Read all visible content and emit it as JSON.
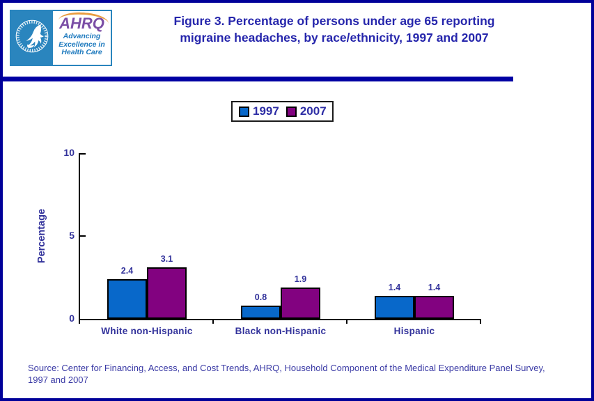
{
  "header": {
    "logo": {
      "seal": "hhs-eagle-seal",
      "wordmark": "AHRQ",
      "tagline_line1": "Advancing",
      "tagline_line2": "Excellence in",
      "tagline_line3": "Health Care"
    },
    "title_line1": "Figure 3. Percentage of persons under age 65 reporting",
    "title_line2": "migraine headaches, by race/ethnicity, 1997 and 2007"
  },
  "chart_data": {
    "type": "bar",
    "title": "Figure 3. Percentage of persons under age 65 reporting migraine headaches, by race/ethnicity, 1997 and 2007",
    "categories": [
      "White non-Hispanic",
      "Black non-Hispanic",
      "Hispanic"
    ],
    "series": [
      {
        "name": "1997",
        "color": "#0868ca",
        "values": [
          2.4,
          0.8,
          1.4
        ]
      },
      {
        "name": "2007",
        "color": "#820280",
        "values": [
          3.1,
          1.9,
          1.4
        ]
      }
    ],
    "xlabel": "",
    "ylabel": "Percentage",
    "ylim": [
      0,
      10
    ],
    "yticks": [
      0,
      5,
      10
    ],
    "grid": false,
    "legend_position": "top-center",
    "data_labels": true
  },
  "footer": {
    "source_line1": "Source: Center for Financing, Access, and Cost Trends, AHRQ, Household Component of the Medical Expenditure Panel Survey,",
    "source_line2": "1997 and 2007"
  },
  "colors": {
    "frame_border": "#000099",
    "divider_bar": "#0000a3",
    "title_text": "#2626ac",
    "chart_text": "#32329b",
    "bar_1997": "#0868ca",
    "bar_2007": "#820280",
    "logo_teal": "#2a85be",
    "logo_purple": "#7b4fa6",
    "logo_orange": "#e89c40"
  }
}
